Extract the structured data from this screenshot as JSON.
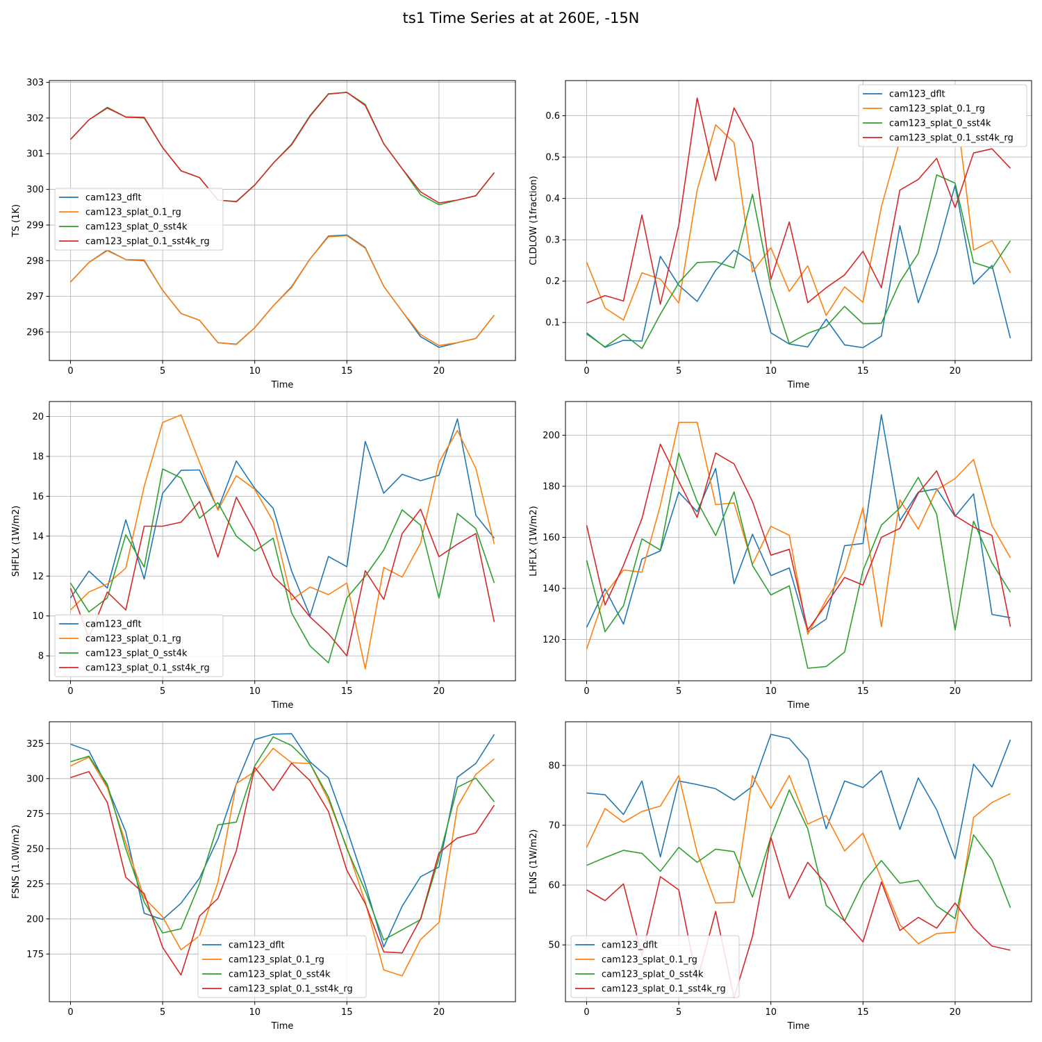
{
  "figure": {
    "title": "ts1 Time Series at at 260E, -15N"
  },
  "colors": {
    "cam123_dflt": "#1f77b4",
    "cam123_splat_0.1_rg": "#ff7f0e",
    "cam123_splat_0_sst4k": "#2ca02c",
    "cam123_splat_0.1_sst4k_rg": "#d62728"
  },
  "chart_data": [
    {
      "type": "line",
      "title": "",
      "xlabel": "Time",
      "ylabel": "TS (1K)",
      "xlim": [
        -1.15,
        24.15
      ],
      "ylim": [
        295.2,
        303.05
      ],
      "xticks": [
        0,
        5,
        10,
        15,
        20
      ],
      "yticks": [
        296,
        297,
        298,
        299,
        300,
        301,
        302,
        303
      ],
      "yticklabels": [
        "296",
        "297",
        "298",
        "299",
        "300",
        "301",
        "302",
        "303"
      ],
      "grid": true,
      "legend": "center-left",
      "x": [
        0,
        1,
        2,
        3,
        4,
        5,
        6,
        7,
        8,
        9,
        10,
        11,
        12,
        13,
        14,
        15,
        16,
        17,
        18,
        19,
        20,
        21,
        22,
        23
      ],
      "series": [
        {
          "name": "cam123_dflt",
          "values": [
            297.4,
            297.95,
            298.3,
            298.03,
            298.0,
            297.17,
            296.52,
            296.33,
            295.7,
            295.66,
            296.12,
            296.73,
            297.27,
            298.05,
            298.69,
            298.72,
            298.37,
            297.28,
            296.58,
            295.87,
            295.57,
            295.7,
            295.82,
            296.47
          ]
        },
        {
          "name": "cam123_splat_0.1_rg",
          "values": [
            297.4,
            297.95,
            298.28,
            298.03,
            298.02,
            297.17,
            296.52,
            296.33,
            295.7,
            295.65,
            296.12,
            296.73,
            297.25,
            298.05,
            298.67,
            298.7,
            298.35,
            297.28,
            296.58,
            295.93,
            295.62,
            295.7,
            295.82,
            296.47
          ]
        },
        {
          "name": "cam123_splat_0_sst4k",
          "values": [
            301.4,
            301.95,
            302.3,
            302.03,
            302.0,
            301.17,
            300.52,
            300.33,
            299.7,
            299.66,
            300.12,
            300.73,
            301.27,
            302.07,
            302.68,
            302.72,
            302.38,
            301.28,
            300.58,
            299.85,
            299.57,
            299.7,
            299.82,
            300.47
          ]
        },
        {
          "name": "cam123_splat_0.1_sst4k_rg",
          "values": [
            301.4,
            301.95,
            302.28,
            302.03,
            302.02,
            301.17,
            300.52,
            300.33,
            299.7,
            299.65,
            300.12,
            300.73,
            301.25,
            302.05,
            302.67,
            302.72,
            302.35,
            301.28,
            300.58,
            299.93,
            299.62,
            299.7,
            299.82,
            300.47
          ]
        }
      ]
    },
    {
      "type": "line",
      "title": "",
      "xlabel": "Time",
      "ylabel": "CLDLOW (1fraction)",
      "xlim": [
        -1.15,
        24.15
      ],
      "ylim": [
        0.008,
        0.685
      ],
      "xticks": [
        0,
        5,
        10,
        15,
        20
      ],
      "yticks": [
        0.1,
        0.2,
        0.3,
        0.4,
        0.5,
        0.6
      ],
      "yticklabels": [
        "0.1",
        "0.2",
        "0.3",
        "0.4",
        "0.5",
        "0.6"
      ],
      "grid": true,
      "legend": "upper-right",
      "x": [
        0,
        1,
        2,
        3,
        4,
        5,
        6,
        7,
        8,
        9,
        10,
        11,
        12,
        13,
        14,
        15,
        16,
        17,
        18,
        19,
        20,
        21,
        22,
        23
      ],
      "series": [
        {
          "name": "cam123_dflt",
          "values": [
            0.075,
            0.04,
            0.057,
            0.055,
            0.26,
            0.19,
            0.151,
            0.226,
            0.275,
            0.245,
            0.075,
            0.048,
            0.041,
            0.108,
            0.046,
            0.039,
            0.067,
            0.334,
            0.148,
            0.268,
            0.432,
            0.193,
            0.238,
            0.062
          ]
        },
        {
          "name": "cam123_splat_0.1_rg",
          "values": [
            0.246,
            0.135,
            0.106,
            0.22,
            0.205,
            0.147,
            0.42,
            0.578,
            0.535,
            0.222,
            0.281,
            0.175,
            0.237,
            0.117,
            0.186,
            0.149,
            0.38,
            0.54,
            0.666,
            0.63,
            0.64,
            0.275,
            0.298,
            0.22
          ]
        },
        {
          "name": "cam123_splat_0_sst4k",
          "values": [
            0.072,
            0.041,
            0.072,
            0.037,
            0.12,
            0.196,
            0.245,
            0.247,
            0.232,
            0.41,
            0.185,
            0.049,
            0.074,
            0.09,
            0.139,
            0.097,
            0.098,
            0.198,
            0.267,
            0.457,
            0.437,
            0.245,
            0.231,
            0.298
          ]
        },
        {
          "name": "cam123_splat_0.1_sst4k_rg",
          "values": [
            0.147,
            0.165,
            0.152,
            0.36,
            0.144,
            0.335,
            0.643,
            0.443,
            0.619,
            0.535,
            0.204,
            0.343,
            0.148,
            0.184,
            0.215,
            0.272,
            0.184,
            0.42,
            0.446,
            0.497,
            0.378,
            0.51,
            0.52,
            0.473
          ]
        }
      ]
    },
    {
      "type": "line",
      "title": "",
      "xlabel": "Time",
      "ylabel": "SHFLX (1W/m2)",
      "xlim": [
        -1.15,
        24.15
      ],
      "ylim": [
        6.75,
        20.75
      ],
      "xticks": [
        0,
        5,
        10,
        15,
        20
      ],
      "yticks": [
        8,
        10,
        12,
        14,
        16,
        18,
        20
      ],
      "yticklabels": [
        "8",
        "10",
        "12",
        "14",
        "16",
        "18",
        "20"
      ],
      "grid": true,
      "legend": "lower-left",
      "x": [
        0,
        1,
        2,
        3,
        4,
        5,
        6,
        7,
        8,
        9,
        10,
        11,
        12,
        13,
        14,
        15,
        16,
        17,
        18,
        19,
        20,
        21,
        22,
        23
      ],
      "series": [
        {
          "name": "cam123_dflt",
          "values": [
            10.9,
            12.25,
            11.4,
            14.82,
            11.85,
            16.15,
            17.3,
            17.32,
            15.35,
            17.77,
            16.4,
            15.4,
            12.25,
            10.0,
            12.98,
            12.47,
            18.75,
            16.15,
            17.1,
            16.78,
            17.05,
            19.88,
            15.05,
            13.9
          ]
        },
        {
          "name": "cam123_splat_0.1_rg",
          "values": [
            10.3,
            11.2,
            11.6,
            12.4,
            16.5,
            19.7,
            20.08,
            17.7,
            15.3,
            17.03,
            16.35,
            14.75,
            10.8,
            11.45,
            11.07,
            11.65,
            7.35,
            12.43,
            11.95,
            13.65,
            17.7,
            19.3,
            17.4,
            13.6
          ]
        },
        {
          "name": "cam123_splat_0_sst4k",
          "values": [
            11.65,
            10.2,
            10.9,
            14.07,
            12.45,
            17.37,
            16.92,
            14.9,
            15.68,
            14.0,
            13.25,
            13.9,
            10.15,
            8.5,
            7.65,
            10.9,
            12.0,
            13.3,
            15.32,
            14.55,
            10.9,
            15.14,
            14.38,
            11.65
          ]
        },
        {
          "name": "cam123_splat_0.1_sst4k_rg",
          "values": [
            11.4,
            8.9,
            11.2,
            10.3,
            14.5,
            14.5,
            14.7,
            15.73,
            12.95,
            15.95,
            14.25,
            12.0,
            11.1,
            9.95,
            9.1,
            8.0,
            12.27,
            10.83,
            14.13,
            15.35,
            12.97,
            13.6,
            14.13,
            9.7
          ]
        }
      ]
    },
    {
      "type": "line",
      "title": "",
      "xlabel": "Time",
      "ylabel": "LHFLX (1W/m2)",
      "xlim": [
        -1.15,
        24.15
      ],
      "ylim": [
        103.8,
        213.2
      ],
      "xticks": [
        0,
        5,
        10,
        15,
        20
      ],
      "yticks": [
        120,
        140,
        160,
        180,
        200
      ],
      "yticklabels": [
        "120",
        "140",
        "160",
        "180",
        "200"
      ],
      "grid": true,
      "legend": "upper-right",
      "x": [
        0,
        1,
        2,
        3,
        4,
        5,
        6,
        7,
        8,
        9,
        10,
        11,
        12,
        13,
        14,
        15,
        16,
        17,
        18,
        19,
        20,
        21,
        22,
        23
      ],
      "series": [
        {
          "name": "cam123_dflt",
          "values": [
            124.7,
            139.8,
            126.0,
            151.5,
            154.7,
            177.7,
            170.0,
            187.0,
            141.8,
            161.2,
            145.0,
            148.0,
            123.0,
            128.0,
            156.7,
            157.6,
            208.0,
            166.5,
            177.7,
            179.0,
            168.2,
            177.0,
            129.8,
            128.5
          ]
        },
        {
          "name": "cam123_splat_0.1_rg",
          "values": [
            116.2,
            137.7,
            147.2,
            146.3,
            172.5,
            205.0,
            205.0,
            172.8,
            173.5,
            149.4,
            164.3,
            160.8,
            122.0,
            135.5,
            147.0,
            171.6,
            125.0,
            174.7,
            163.2,
            178.6,
            183.0,
            190.5,
            164.6,
            152.0
          ]
        },
        {
          "name": "cam123_splat_0_sst4k",
          "values": [
            151.0,
            123.0,
            133.2,
            159.4,
            155.0,
            193.0,
            174.0,
            160.7,
            177.8,
            149.0,
            137.4,
            141.0,
            108.7,
            109.4,
            115.0,
            147.0,
            164.8,
            171.5,
            183.5,
            169.0,
            123.7,
            166.3,
            150.0,
            138.5
          ]
        },
        {
          "name": "cam123_splat_0.1_sst4k_rg",
          "values": [
            164.7,
            133.5,
            149.0,
            167.3,
            196.5,
            182.0,
            167.8,
            193.0,
            188.8,
            174.0,
            153.0,
            155.3,
            123.7,
            133.7,
            144.3,
            141.3,
            160.0,
            163.5,
            177.3,
            186.0,
            168.5,
            164.0,
            160.7,
            125.0
          ]
        }
      ]
    },
    {
      "type": "line",
      "title": "",
      "xlabel": "Time",
      "ylabel": "FSNS (1.0W/m2)",
      "xlim": [
        -1.15,
        24.15
      ],
      "ylim": [
        141.0,
        340.5
      ],
      "xticks": [
        0,
        5,
        10,
        15,
        20
      ],
      "yticks": [
        175,
        200,
        225,
        250,
        275,
        300,
        325
      ],
      "yticklabels": [
        "175",
        "200",
        "225",
        "250",
        "275",
        "300",
        "325"
      ],
      "grid": true,
      "legend": "lower-center",
      "x": [
        0,
        1,
        2,
        3,
        4,
        5,
        6,
        7,
        8,
        9,
        10,
        11,
        12,
        13,
        14,
        15,
        16,
        17,
        18,
        19,
        20,
        21,
        22,
        23
      ],
      "series": [
        {
          "name": "cam123_dflt",
          "values": [
            324.5,
            319.8,
            294.0,
            262.0,
            204.0,
            199.6,
            211.2,
            229.0,
            257.0,
            296.0,
            327.8,
            331.7,
            332.0,
            312.0,
            300.5,
            264.0,
            224.5,
            180.0,
            209.0,
            230.0,
            237.0,
            301.0,
            310.8,
            331.5
          ]
        },
        {
          "name": "cam123_splat_0.1_rg",
          "values": [
            309.0,
            315.3,
            293.5,
            254.0,
            215.0,
            201.5,
            178.0,
            188.0,
            226.0,
            296.4,
            305.0,
            321.6,
            311.3,
            310.8,
            284.7,
            251.0,
            212.0,
            163.6,
            159.4,
            185.3,
            197.5,
            280.0,
            303.0,
            314.0
          ]
        },
        {
          "name": "cam123_splat_0_sst4k",
          "values": [
            312.0,
            316.0,
            296.0,
            250.0,
            212.0,
            190.0,
            193.0,
            225.0,
            267.0,
            269.0,
            309.0,
            329.7,
            323.5,
            310.7,
            287.0,
            250.0,
            220.0,
            185.0,
            192.3,
            199.5,
            243.4,
            293.8,
            300.3,
            283.5
          ]
        },
        {
          "name": "cam123_splat_0.1_sst4k_rg",
          "values": [
            300.7,
            305.0,
            283.0,
            229.6,
            218.0,
            179.7,
            160.0,
            202.0,
            214.6,
            248.5,
            308.0,
            291.5,
            311.0,
            298.5,
            276.6,
            234.6,
            211.0,
            176.5,
            175.8,
            200.0,
            247.0,
            257.7,
            261.3,
            281.0
          ]
        }
      ]
    },
    {
      "type": "line",
      "title": "",
      "xlabel": "Time",
      "ylabel": "FLNS (1W/m2)",
      "xlim": [
        -1.15,
        24.15
      ],
      "ylim": [
        40.5,
        87.3
      ],
      "xticks": [
        0,
        5,
        10,
        15,
        20
      ],
      "yticks": [
        50,
        60,
        70,
        80
      ],
      "yticklabels": [
        "50",
        "60",
        "70",
        "80"
      ],
      "grid": true,
      "legend": "lower-left",
      "x": [
        0,
        1,
        2,
        3,
        4,
        5,
        6,
        7,
        8,
        9,
        10,
        11,
        12,
        13,
        14,
        15,
        16,
        17,
        18,
        19,
        20,
        21,
        22,
        23
      ],
      "series": [
        {
          "name": "cam123_dflt",
          "values": [
            75.4,
            75.1,
            71.8,
            77.4,
            64.7,
            77.4,
            76.8,
            76.1,
            74.2,
            76.5,
            85.2,
            84.5,
            81.0,
            69.4,
            77.4,
            76.3,
            79.1,
            69.3,
            77.9,
            72.6,
            64.4,
            80.2,
            76.4,
            84.3
          ]
        },
        {
          "name": "cam123_splat_0.1_rg",
          "values": [
            66.3,
            72.8,
            70.5,
            72.3,
            73.2,
            78.3,
            65.4,
            57.0,
            57.1,
            78.3,
            72.8,
            78.3,
            70.2,
            71.6,
            65.7,
            68.7,
            61.0,
            53.4,
            50.2,
            51.9,
            52.1,
            71.3,
            73.8,
            75.3
          ]
        },
        {
          "name": "cam123_splat_0_sst4k",
          "values": [
            63.3,
            64.6,
            65.8,
            65.3,
            62.3,
            66.3,
            63.8,
            66.0,
            65.6,
            58.0,
            68.0,
            75.9,
            69.4,
            56.6,
            54.0,
            60.4,
            64.1,
            60.3,
            60.8,
            56.5,
            54.4,
            68.4,
            64.2,
            56.2
          ]
        },
        {
          "name": "cam123_splat_0.1_sst4k_rg",
          "values": [
            59.2,
            57.4,
            60.2,
            48.2,
            61.4,
            59.2,
            44.0,
            55.6,
            41.2,
            51.4,
            68.0,
            57.8,
            63.8,
            60.2,
            54.0,
            50.5,
            60.5,
            52.4,
            54.6,
            52.8,
            57.0,
            52.8,
            49.8,
            49.1
          ]
        }
      ]
    }
  ]
}
